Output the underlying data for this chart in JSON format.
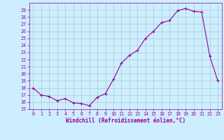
{
  "hours_pts": [
    0,
    1,
    2,
    3,
    4,
    5,
    6,
    7,
    8,
    9,
    10,
    11,
    12,
    13,
    14,
    15,
    16,
    17,
    18,
    19,
    20,
    21,
    22,
    23
  ],
  "values_pts": [
    18.0,
    17.0,
    16.8,
    16.2,
    16.5,
    15.9,
    15.8,
    15.5,
    16.7,
    17.2,
    19.2,
    21.5,
    22.6,
    23.3,
    25.0,
    26.0,
    27.2,
    27.5,
    28.9,
    29.2,
    28.8,
    28.7,
    22.5,
    19.0
  ],
  "line_color": "#990099",
  "marker_color": "#990099",
  "bg_color": "#cceeff",
  "grid_color": "#aacccc",
  "axis_color": "#990099",
  "xlabel": "Windchill (Refroidissement éolien,°C)",
  "xlim": [
    -0.5,
    23.5
  ],
  "ylim": [
    15,
    30
  ],
  "yticks": [
    15,
    16,
    17,
    18,
    19,
    20,
    21,
    22,
    23,
    24,
    25,
    26,
    27,
    28,
    29
  ],
  "xticks": [
    0,
    1,
    2,
    3,
    4,
    5,
    6,
    7,
    8,
    9,
    10,
    11,
    12,
    13,
    14,
    15,
    16,
    17,
    18,
    19,
    20,
    21,
    22,
    23
  ],
  "title_fontsize": 6,
  "xlabel_fontsize": 5.5,
  "tick_fontsize": 4.8
}
